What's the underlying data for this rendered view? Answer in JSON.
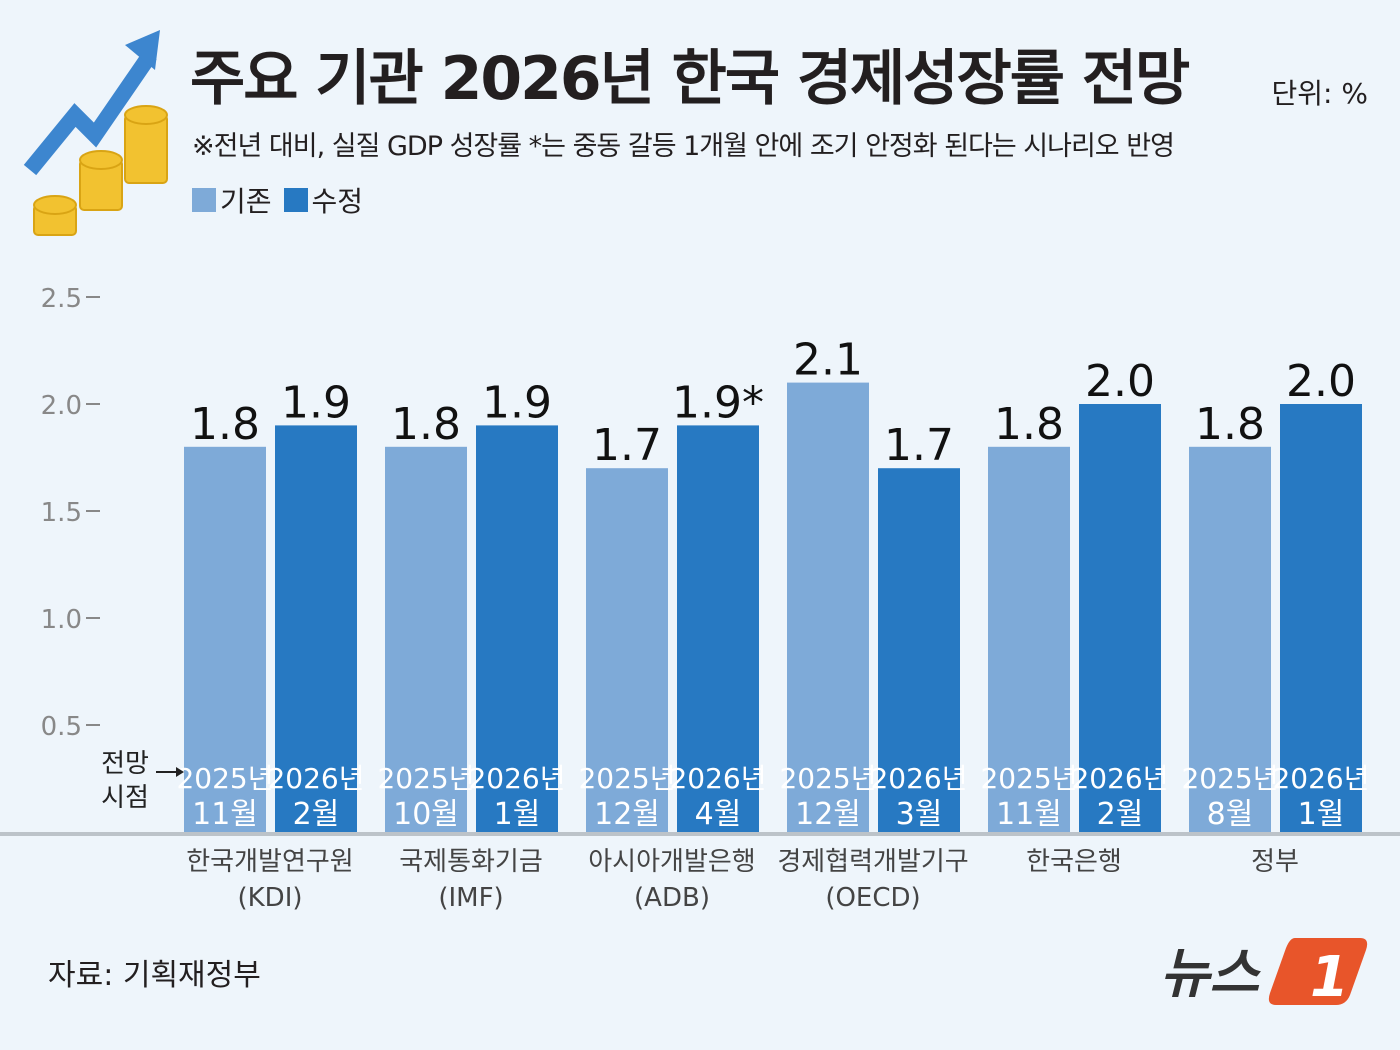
{
  "header": {
    "title": "주요 기관 2026년 한국 경제성장률 전망",
    "unit": "단위: %",
    "subtitle": "※전년 대비, 실질 GDP 성장률  *는 중동 갈등 1개월 안에 조기 안정화 된다는 시나리오 반영"
  },
  "footer": {
    "source": "자료: 기획재정부",
    "logo": "뉴스1"
  },
  "forecast_label": [
    "전망",
    "시점"
  ],
  "colors": {
    "existing": "#7eaad8",
    "revised": "#2779c2",
    "background": "#eef5fb"
  },
  "chart_data": {
    "type": "bar",
    "ylim": [
      0,
      2.5
    ],
    "yticks": [
      "0.5",
      "1.0",
      "1.5",
      "2.0",
      "2.5"
    ],
    "grid": false,
    "legend_position": "top-left",
    "categories": [
      [
        "한국개발연구원",
        "(KDI)"
      ],
      [
        "국제통화기금",
        "(IMF)"
      ],
      [
        "아시아개발은행",
        "(ADB)"
      ],
      [
        "경제협력개발기구",
        "(OECD)"
      ],
      [
        "한국은행",
        ""
      ],
      [
        "정부",
        ""
      ]
    ],
    "series": [
      {
        "name": "기존",
        "values": [
          1.8,
          1.8,
          1.7,
          2.1,
          1.8,
          1.8
        ],
        "labels": [
          "1.8",
          "1.8",
          "1.7",
          "2.1",
          "1.8",
          "1.8"
        ],
        "dates": [
          [
            "2025년",
            "11월"
          ],
          [
            "2025년",
            "10월"
          ],
          [
            "2025년",
            "12월"
          ],
          [
            "2025년",
            "12월"
          ],
          [
            "2025년",
            "11월"
          ],
          [
            "2025년",
            "8월"
          ]
        ]
      },
      {
        "name": "수정",
        "values": [
          1.9,
          1.9,
          1.9,
          1.7,
          2.0,
          2.0
        ],
        "labels": [
          "1.9",
          "1.9",
          "1.9*",
          "1.7",
          "2.0",
          "2.0"
        ],
        "dates": [
          [
            "2026년",
            "2월"
          ],
          [
            "2026년",
            "1월"
          ],
          [
            "2026년",
            "4월"
          ],
          [
            "2026년",
            "3월"
          ],
          [
            "2026년",
            "2월"
          ],
          [
            "2026년",
            "1월"
          ]
        ]
      }
    ]
  }
}
